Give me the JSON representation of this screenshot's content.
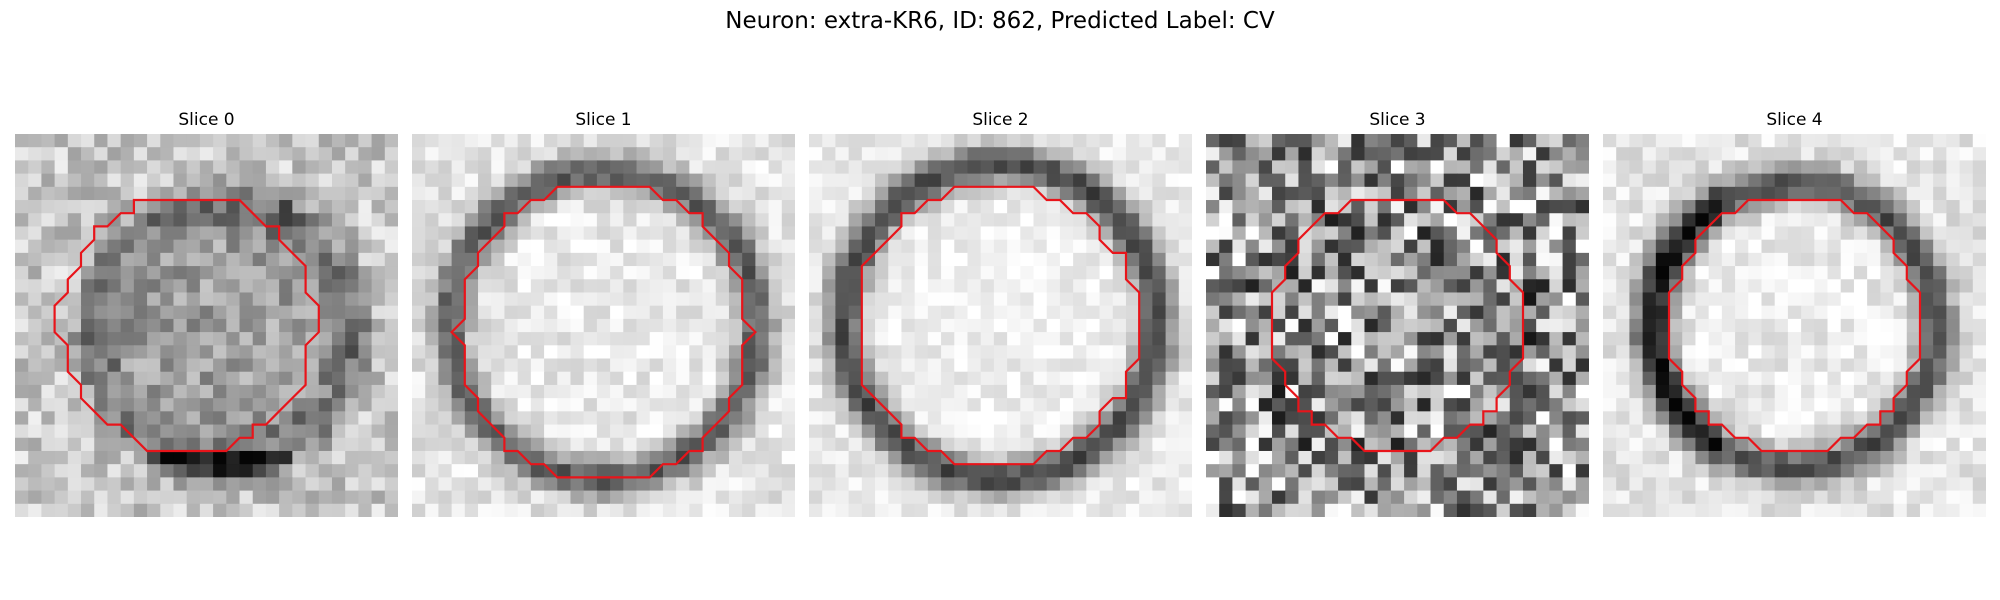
{
  "figure": {
    "title": "Neuron: extra-KR6, ID: 862, Predicted Label: CV"
  },
  "colors": {
    "outline": "#e8141a",
    "background": "#ffffff"
  },
  "panels": [
    {
      "title": "Slice 0",
      "style": "smooth-dark",
      "seed": 11
    },
    {
      "title": "Slice 1",
      "style": "bright-ring",
      "seed": 23
    },
    {
      "title": "Slice 2",
      "style": "bright-ring-strong",
      "seed": 37
    },
    {
      "title": "Slice 3",
      "style": "noisy",
      "seed": 53
    },
    {
      "title": "Slice 4",
      "style": "bright-ring-left",
      "seed": 71
    }
  ]
}
